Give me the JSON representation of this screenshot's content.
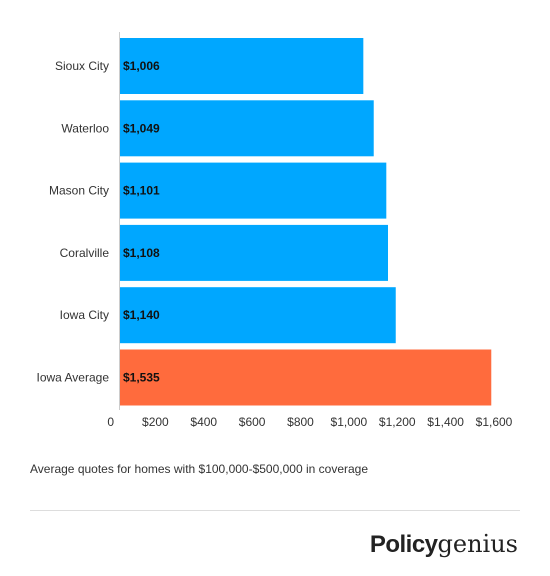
{
  "chart_data": {
    "type": "bar",
    "orientation": "horizontal",
    "categories": [
      "Sioux City",
      "Waterloo",
      "Mason City",
      "Coralville",
      "Iowa City",
      "Iowa Average"
    ],
    "values": [
      1006,
      1049,
      1101,
      1108,
      1140,
      1535
    ],
    "data_labels": [
      "$1,006",
      "$1,049",
      "$1,101",
      "$1,108",
      "$1,140",
      "$1,535"
    ],
    "bar_colors": [
      "#00a7ff",
      "#00a7ff",
      "#00a7ff",
      "#00a7ff",
      "#00a7ff",
      "#ff6b3d"
    ],
    "x_ticks": [
      {
        "value": 0,
        "label": "0"
      },
      {
        "value": 200,
        "label": "$200"
      },
      {
        "value": 400,
        "label": "$400"
      },
      {
        "value": 600,
        "label": "$600"
      },
      {
        "value": 800,
        "label": "$800"
      },
      {
        "value": 1000,
        "label": "$1,000"
      },
      {
        "value": 1200,
        "label": "$1,200"
      },
      {
        "value": 1400,
        "label": "$1,400"
      },
      {
        "value": 1600,
        "label": "$1,600"
      }
    ],
    "xlim": [
      0,
      1600
    ],
    "grid": false,
    "legend": "none"
  },
  "caption": "Average quotes for homes with $100,000-$500,000 in coverage",
  "logo": {
    "part1": "Policy",
    "part2": "genius"
  }
}
